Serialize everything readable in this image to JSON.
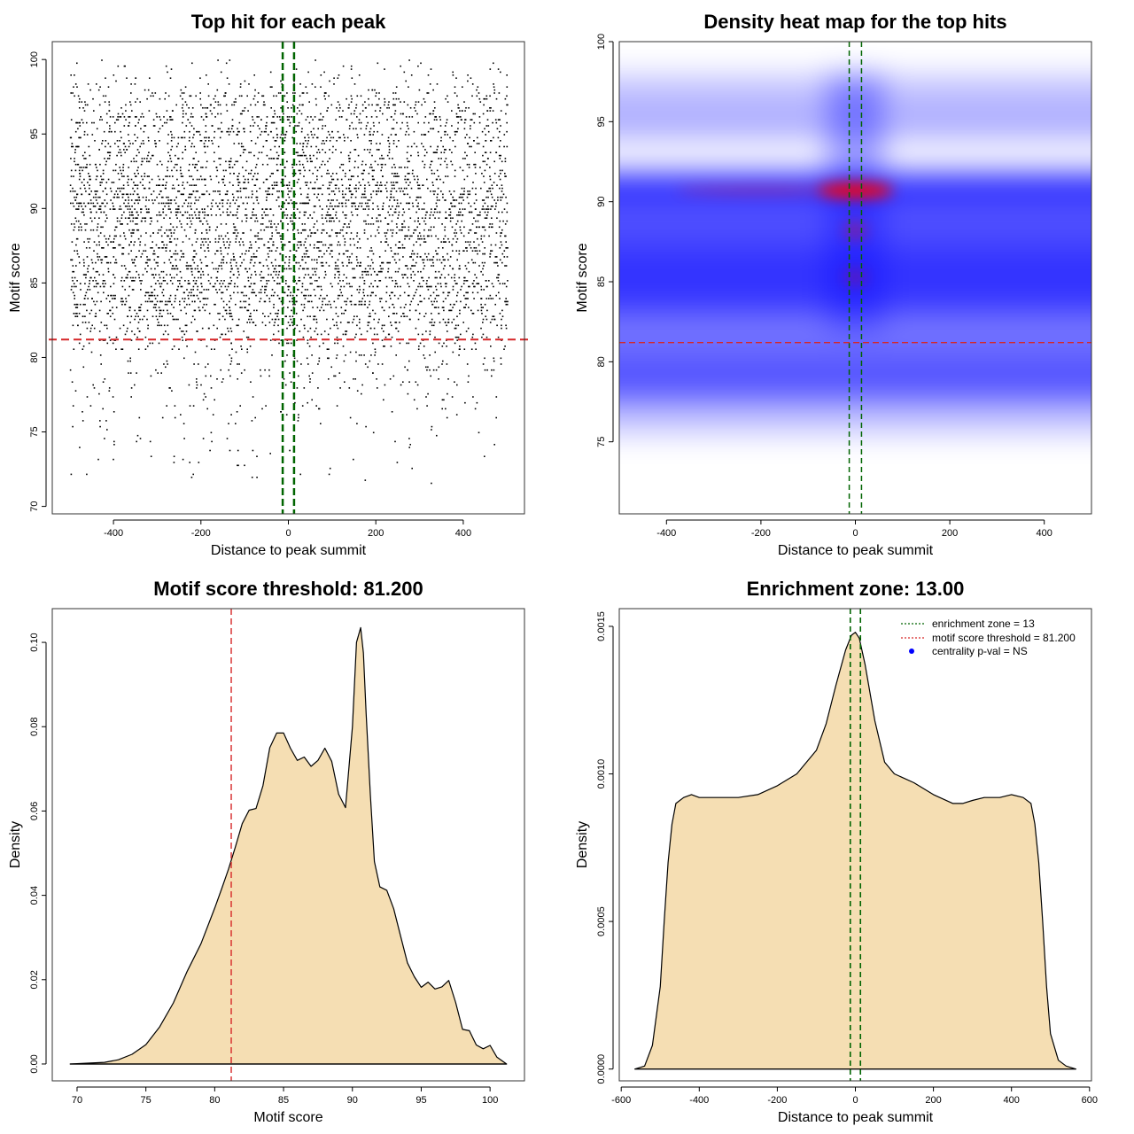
{
  "colors": {
    "fill": "#f5deb3",
    "zone_line": "#006400",
    "threshold_line": "#d62728",
    "heat_low": "#ffffff",
    "heat_mid": "#0000ff",
    "heat_high": "#ff0000",
    "legend_dot": "#0000ff"
  },
  "chart_data": [
    {
      "id": "scatter",
      "type": "scatter",
      "title": "Top hit for each peak",
      "xlabel": "Distance to peak summit",
      "ylabel": "Motif score",
      "xlim": [
        -540,
        540
      ],
      "ylim": [
        69.5,
        101.2
      ],
      "xticks": [
        -400,
        -200,
        0,
        200,
        400
      ],
      "xtick_labels": [
        "-400",
        "-200",
        "0",
        "200",
        "400"
      ],
      "yticks": [
        70,
        75,
        80,
        85,
        90,
        95,
        100
      ],
      "ytick_labels": [
        "70",
        "75",
        "80",
        "85",
        "90",
        "95",
        "100"
      ],
      "points_x_range": [
        -500,
        500
      ],
      "score_peaks": [
        85,
        90.7,
        95,
        97
      ],
      "enrichment_zone": [
        -13,
        13
      ],
      "threshold": 81.2
    },
    {
      "id": "heatmap",
      "type": "heatmap",
      "title": "Density heat map for the top hits",
      "xlabel": "Distance to peak summit",
      "ylabel": "Motif score",
      "xlim": [
        -500,
        500
      ],
      "ylim": [
        70.5,
        100
      ],
      "xticks": [
        -400,
        -200,
        0,
        200,
        400
      ],
      "xtick_labels": [
        "-400",
        "-200",
        "0",
        "200",
        "400"
      ],
      "yticks": [
        75,
        80,
        85,
        90,
        95,
        100
      ],
      "ytick_labels": [
        "75",
        "80",
        "85",
        "90",
        "95",
        "100"
      ],
      "hotspot": {
        "x": 0,
        "y": 90.7
      },
      "bands": [
        85,
        90.7,
        95,
        97
      ],
      "enrichment_zone": [
        -13,
        13
      ],
      "threshold": 81.2
    },
    {
      "id": "score-density",
      "type": "area",
      "title": "Motif score threshold: 81.200",
      "xlabel": "Motif score",
      "ylabel": "Density",
      "xlim": [
        68.2,
        102.5
      ],
      "ylim": [
        -0.004,
        0.108
      ],
      "xticks": [
        70,
        75,
        80,
        85,
        90,
        95,
        100
      ],
      "xtick_labels": [
        "70",
        "75",
        "80",
        "85",
        "90",
        "95",
        "100"
      ],
      "yticks": [
        0,
        0.02,
        0.04,
        0.06,
        0.08,
        0.1
      ],
      "ytick_labels": [
        "0.00",
        "0.02",
        "0.04",
        "0.06",
        "0.08",
        "0.10"
      ],
      "x": [
        69.5,
        72,
        73,
        74,
        75,
        76,
        77,
        78,
        79,
        80,
        80.5,
        81,
        81.5,
        82,
        82.5,
        83,
        83.5,
        84,
        84.5,
        85,
        85.5,
        86,
        86.5,
        87,
        87.5,
        88,
        88.5,
        89,
        89.5,
        90,
        90.3,
        90.6,
        90.8,
        91,
        91.3,
        91.6,
        92,
        92.5,
        93,
        93.5,
        94,
        94.5,
        95,
        95.5,
        96,
        96.5,
        97,
        97.5,
        98,
        98.5,
        99,
        99.5,
        100,
        100.5,
        101.2
      ],
      "y": [
        0,
        0.0004,
        0.001,
        0.0023,
        0.0046,
        0.0088,
        0.0145,
        0.022,
        0.0285,
        0.037,
        0.0415,
        0.0462,
        0.0515,
        0.057,
        0.0602,
        0.0606,
        0.066,
        0.075,
        0.0785,
        0.0785,
        0.0749,
        0.072,
        0.0728,
        0.0706,
        0.072,
        0.0749,
        0.0718,
        0.064,
        0.0608,
        0.08,
        0.1,
        0.1035,
        0.0975,
        0.083,
        0.064,
        0.048,
        0.042,
        0.0412,
        0.0368,
        0.0304,
        0.024,
        0.0207,
        0.0182,
        0.0194,
        0.0178,
        0.0183,
        0.0198,
        0.0146,
        0.0082,
        0.0079,
        0.0045,
        0.0036,
        0.0044,
        0.0016,
        0
      ],
      "threshold": 81.2
    },
    {
      "id": "distance-density",
      "type": "area",
      "title": "Enrichment zone: 13.00",
      "xlabel": "Distance to peak summit",
      "ylabel": "Density",
      "xlim": [
        -605,
        605
      ],
      "ylim": [
        -4e-05,
        0.00156
      ],
      "xticks": [
        -600,
        -400,
        -200,
        0,
        200,
        400,
        600
      ],
      "xtick_labels": [
        "-600",
        "-400",
        "-200",
        "0",
        "200",
        "400",
        "600"
      ],
      "yticks": [
        0,
        0.0005,
        0.001,
        0.0015
      ],
      "ytick_labels": [
        "0.0000",
        "0.0005",
        "0.0010",
        "0.0015"
      ],
      "x": [
        -565,
        -540,
        -520,
        -500,
        -490,
        -480,
        -470,
        -460,
        -440,
        -420,
        -400,
        -350,
        -300,
        -250,
        -200,
        -150,
        -100,
        -75,
        -50,
        -25,
        -10,
        0,
        10,
        25,
        50,
        75,
        100,
        150,
        200,
        250,
        275,
        300,
        330,
        370,
        400,
        430,
        450,
        460,
        470,
        480,
        490,
        500,
        520,
        540,
        565
      ],
      "y": [
        0,
        1e-05,
        8e-05,
        0.00028,
        0.0005,
        0.0007,
        0.00083,
        0.0009,
        0.00092,
        0.00093,
        0.00092,
        0.00092,
        0.00092,
        0.00093,
        0.00096,
        0.001,
        0.00108,
        0.00117,
        0.0013,
        0.00142,
        0.00147,
        0.00148,
        0.00146,
        0.00137,
        0.00118,
        0.00104,
        0.001,
        0.00097,
        0.00093,
        0.0009,
        0.0009,
        0.00091,
        0.00092,
        0.00092,
        0.00093,
        0.00092,
        0.0009,
        0.00083,
        0.0007,
        0.0005,
        0.00028,
        0.00012,
        3e-05,
        1e-05,
        0
      ],
      "enrichment_zone": [
        -13,
        13
      ],
      "legend": [
        "enrichment zone = 13",
        "motif score threshold = 81.200",
        "centrality p-val = NS"
      ]
    }
  ]
}
